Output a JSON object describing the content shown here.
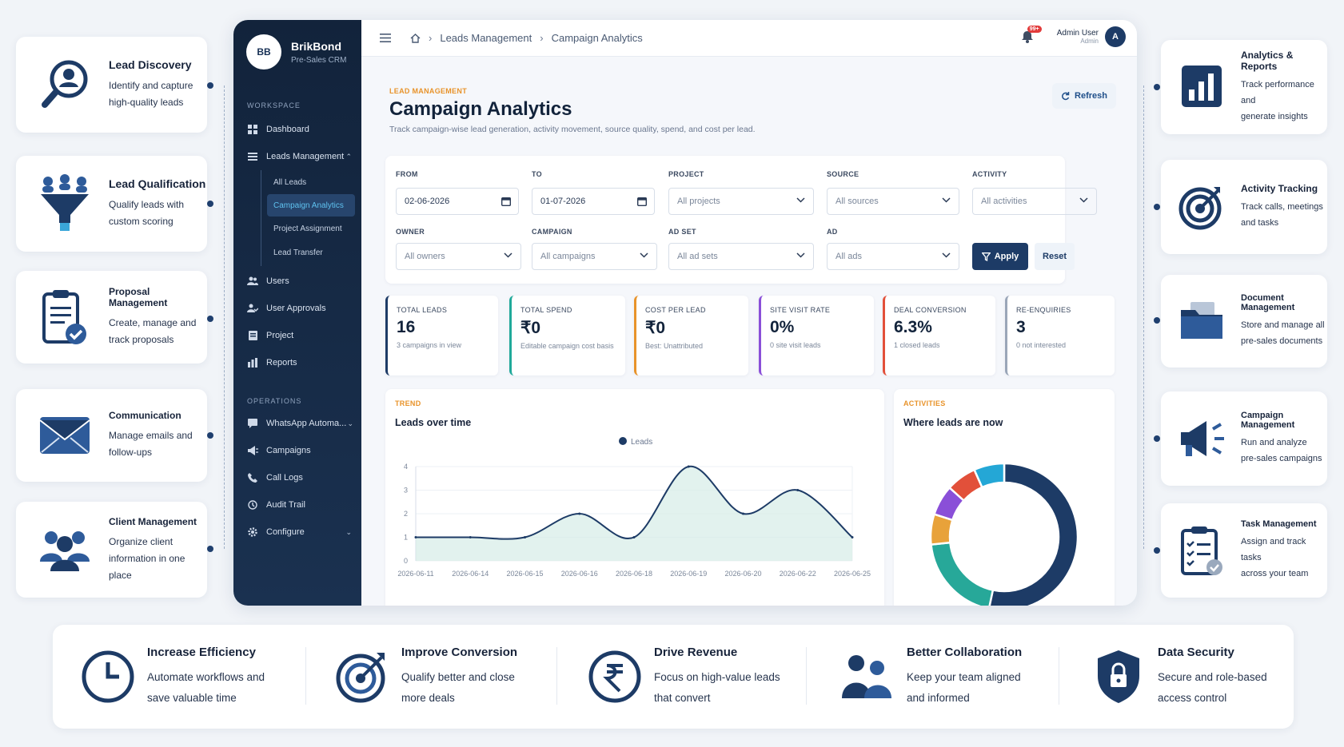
{
  "left_cards": [
    {
      "icon": "lead-search-icon",
      "title": "Lead Discovery",
      "desc": [
        "Identify and capture",
        "high-quality leads"
      ]
    },
    {
      "icon": "funnel-icon",
      "title": "Lead Qualification",
      "desc": [
        "Qualify leads with",
        "custom scoring"
      ]
    },
    {
      "icon": "clipboard-check-icon",
      "title": "Proposal Management",
      "desc": [
        "Create, manage and",
        "track proposals"
      ]
    },
    {
      "icon": "envelope-icon",
      "title": "Communication",
      "desc": [
        "Manage emails and",
        "follow-ups"
      ]
    },
    {
      "icon": "team-icon",
      "title": "Client Management",
      "desc": [
        "Organize client",
        "information in one place"
      ]
    }
  ],
  "right_cards": [
    {
      "icon": "bar-chart-icon",
      "title": "Analytics & Reports",
      "desc": [
        "Track performance and",
        "generate insights"
      ]
    },
    {
      "icon": "target-icon",
      "title": "Activity Tracking",
      "desc": [
        "Track calls, meetings",
        "and tasks"
      ]
    },
    {
      "icon": "folder-icon",
      "title": "Document Management",
      "desc": [
        "Store and manage all",
        "pre-sales documents"
      ]
    },
    {
      "icon": "megaphone-icon",
      "title": "Campaign Management",
      "desc": [
        "Run and analyze",
        "pre-sales campaigns"
      ]
    },
    {
      "icon": "task-list-icon",
      "title": "Task Management",
      "desc": [
        "Assign and track tasks",
        "across your team"
      ]
    }
  ],
  "sidebar": {
    "logo": "BB",
    "brand": "BrikBond",
    "subtitle": "Pre-Sales CRM",
    "workspace_label": "WORKSPACE",
    "operations_label": "OPERATIONS",
    "items": {
      "dashboard": "Dashboard",
      "leads": "Leads Management",
      "all_leads": "All Leads",
      "campaign_analytics": "Campaign Analytics",
      "project_assignment": "Project Assignment",
      "lead_transfer": "Lead Transfer",
      "users": "Users",
      "user_approvals": "User Approvals",
      "project": "Project",
      "reports": "Reports",
      "whatsapp": "WhatsApp Automa...",
      "campaigns": "Campaigns",
      "call_logs": "Call Logs",
      "audit_trail": "Audit Trail",
      "configure": "Configure"
    }
  },
  "topbar": {
    "breadcrumb": [
      "Leads Management",
      "Campaign Analytics"
    ],
    "notifications": "99+",
    "user_name": "Admin User",
    "user_role": "Admin",
    "avatar": "A"
  },
  "page": {
    "kicker": "LEAD MANAGEMENT",
    "title": "Campaign Analytics",
    "description": "Track campaign-wise lead generation, activity movement, source quality, spend, and cost per lead.",
    "refresh": "Refresh"
  },
  "filters": {
    "from_label": "FROM",
    "from_value": "02-06-2026",
    "to_label": "TO",
    "to_value": "01-07-2026",
    "project_label": "PROJECT",
    "project_value": "All projects",
    "source_label": "SOURCE",
    "source_value": "All sources",
    "activity_label": "ACTIVITY",
    "activity_value": "All activities",
    "owner_label": "OWNER",
    "owner_value": "All owners",
    "campaign_label": "CAMPAIGN",
    "campaign_value": "All campaigns",
    "adset_label": "AD SET",
    "adset_value": "All ad sets",
    "ad_label": "AD",
    "ad_value": "All ads",
    "apply": "Apply",
    "reset": "Reset"
  },
  "kpis": [
    {
      "label": "TOTAL LEADS",
      "value": "16",
      "sub": "3 campaigns in view",
      "color": "#1d3b66"
    },
    {
      "label": "TOTAL SPEND",
      "value": "₹0",
      "sub": "Editable campaign cost basis",
      "color": "#20a99a"
    },
    {
      "label": "COST PER LEAD",
      "value": "₹0",
      "sub": "Best: Unattributed",
      "color": "#e8932a"
    },
    {
      "label": "SITE VISIT RATE",
      "value": "0%",
      "sub": "0 site visit leads",
      "color": "#8a4fd8"
    },
    {
      "label": "DEAL CONVERSION",
      "value": "6.3%",
      "sub": "1 closed leads",
      "color": "#e2503a"
    },
    {
      "label": "RE-ENQUIRIES",
      "value": "3",
      "sub": "0 not interested",
      "color": "#9aa6b8"
    }
  ],
  "trend_panel": {
    "kicker": "TREND",
    "title": "Leads over time"
  },
  "activities_panel": {
    "kicker": "ACTIVITIES",
    "title": "Where leads are now"
  },
  "chart_data": [
    {
      "type": "area",
      "title": "Leads over time",
      "series": [
        {
          "name": "Leads",
          "values": [
            1,
            1,
            1,
            2,
            1,
            4,
            2,
            3,
            1
          ]
        }
      ],
      "categories": [
        "2026-06-11",
        "2026-06-14",
        "2026-06-15",
        "2026-06-16",
        "2026-06-18",
        "2026-06-19",
        "2026-06-20",
        "2026-06-22",
        "2026-06-25"
      ],
      "ylim": [
        0,
        4
      ],
      "yticks": [
        "0",
        "1",
        "2",
        "3",
        "4"
      ],
      "grid": true,
      "legend": "top-center",
      "color": "#1d3b66",
      "fill": "#d6ece7"
    },
    {
      "type": "pie",
      "title": "Where leads are now",
      "donut": true,
      "values": [
        8,
        3,
        1,
        1,
        1,
        1
      ],
      "colors": [
        "#1d3b66",
        "#27a899",
        "#e8a23a",
        "#8a4fd8",
        "#e2503a",
        "#24a7d6"
      ]
    }
  ],
  "bottom": [
    {
      "icon": "clock-icon",
      "title": "Increase Efficiency",
      "desc": [
        "Automate workflows and",
        "save valuable time"
      ]
    },
    {
      "icon": "target-icon",
      "title": "Improve Conversion",
      "desc": [
        "Qualify better and close",
        "more deals"
      ]
    },
    {
      "icon": "rupee-icon",
      "title": "Drive Revenue",
      "desc": [
        "Focus on high-value leads",
        "that convert"
      ]
    },
    {
      "icon": "team-icon",
      "title": "Better Collaboration",
      "desc": [
        "Keep your team aligned",
        "and informed"
      ]
    },
    {
      "icon": "shield-lock-icon",
      "title": "Data Security",
      "desc": [
        "Secure and role-based",
        "access control"
      ]
    }
  ]
}
